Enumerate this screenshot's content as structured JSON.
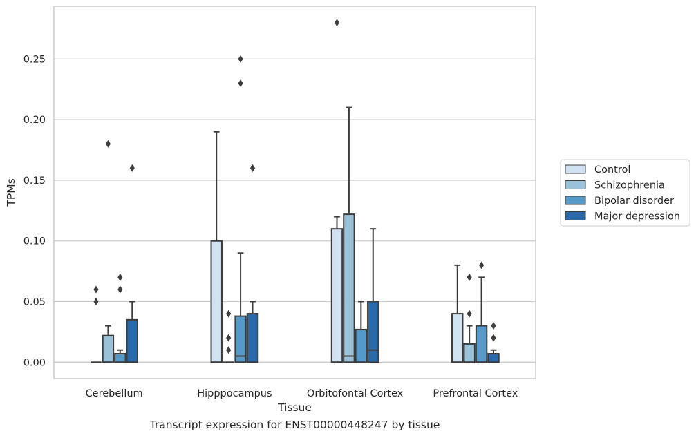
{
  "caption": "Transcript expression for ENST00000448247 by tissue",
  "chart_data": {
    "type": "box",
    "xlabel": "Tissue",
    "ylabel": "TPMs",
    "ylim": [
      -0.0135,
      0.2935
    ],
    "yticks": [
      0.0,
      0.05,
      0.1,
      0.15,
      0.2,
      0.25
    ],
    "ytick_labels": [
      "0.00",
      "0.05",
      "0.10",
      "0.15",
      "0.20",
      "0.25"
    ],
    "grid": "horizontal",
    "legend_position": "right",
    "categories": [
      "Cerebellum",
      "Hipppocampus",
      "Orbitofontal Cortex",
      "Prefrontal Cortex"
    ],
    "series": [
      {
        "name": "Control",
        "color": "#d0e1f2",
        "boxes": [
          {
            "q1": 0.0,
            "median": 0.0,
            "q3": 0.0,
            "whisker_low": 0.0,
            "whisker_high": 0.0,
            "outliers": [
              0.05,
              0.06
            ]
          },
          {
            "q1": 0.0,
            "median": 0.0,
            "q3": 0.1,
            "whisker_low": 0.0,
            "whisker_high": 0.19,
            "outliers": []
          },
          {
            "q1": 0.0,
            "median": 0.0,
            "q3": 0.11,
            "whisker_low": 0.0,
            "whisker_high": 0.12,
            "outliers": [
              0.28
            ]
          },
          {
            "q1": 0.0,
            "median": 0.0,
            "q3": 0.04,
            "whisker_low": 0.0,
            "whisker_high": 0.08,
            "outliers": []
          }
        ]
      },
      {
        "name": "Schizophrenia",
        "color": "#9ac1da",
        "boxes": [
          {
            "q1": 0.0,
            "median": 0.0,
            "q3": 0.022,
            "whisker_low": 0.0,
            "whisker_high": 0.03,
            "outliers": [
              0.18
            ]
          },
          {
            "q1": 0.0,
            "median": 0.0,
            "q3": 0.0,
            "whisker_low": 0.0,
            "whisker_high": 0.0,
            "outliers": [
              0.01,
              0.02,
              0.04
            ]
          },
          {
            "q1": 0.0,
            "median": 0.005,
            "q3": 0.122,
            "whisker_low": 0.0,
            "whisker_high": 0.21,
            "outliers": []
          },
          {
            "q1": 0.0,
            "median": 0.0,
            "q3": 0.015,
            "whisker_low": 0.0,
            "whisker_high": 0.03,
            "outliers": [
              0.04,
              0.07
            ]
          }
        ]
      },
      {
        "name": "Bipolar disorder",
        "color": "#5499c7",
        "boxes": [
          {
            "q1": 0.0,
            "median": 0.0,
            "q3": 0.007,
            "whisker_low": 0.0,
            "whisker_high": 0.01,
            "outliers": [
              0.06,
              0.07
            ]
          },
          {
            "q1": 0.0,
            "median": 0.005,
            "q3": 0.038,
            "whisker_low": 0.0,
            "whisker_high": 0.09,
            "outliers": [
              0.23,
              0.25
            ]
          },
          {
            "q1": 0.0,
            "median": 0.0,
            "q3": 0.027,
            "whisker_low": 0.0,
            "whisker_high": 0.05,
            "outliers": []
          },
          {
            "q1": 0.0,
            "median": 0.0,
            "q3": 0.03,
            "whisker_low": 0.0,
            "whisker_high": 0.07,
            "outliers": [
              0.08
            ]
          }
        ]
      },
      {
        "name": "Major depression",
        "color": "#2a6aab",
        "boxes": [
          {
            "q1": 0.0,
            "median": 0.0,
            "q3": 0.035,
            "whisker_low": 0.0,
            "whisker_high": 0.05,
            "outliers": [
              0.16
            ]
          },
          {
            "q1": 0.0,
            "median": 0.0,
            "q3": 0.04,
            "whisker_low": 0.0,
            "whisker_high": 0.05,
            "outliers": [
              0.16
            ]
          },
          {
            "q1": 0.0,
            "median": 0.01,
            "q3": 0.05,
            "whisker_low": 0.0,
            "whisker_high": 0.11,
            "outliers": []
          },
          {
            "q1": 0.0,
            "median": 0.0,
            "q3": 0.007,
            "whisker_low": 0.0,
            "whisker_high": 0.01,
            "outliers": [
              0.02,
              0.03
            ]
          }
        ]
      }
    ]
  }
}
